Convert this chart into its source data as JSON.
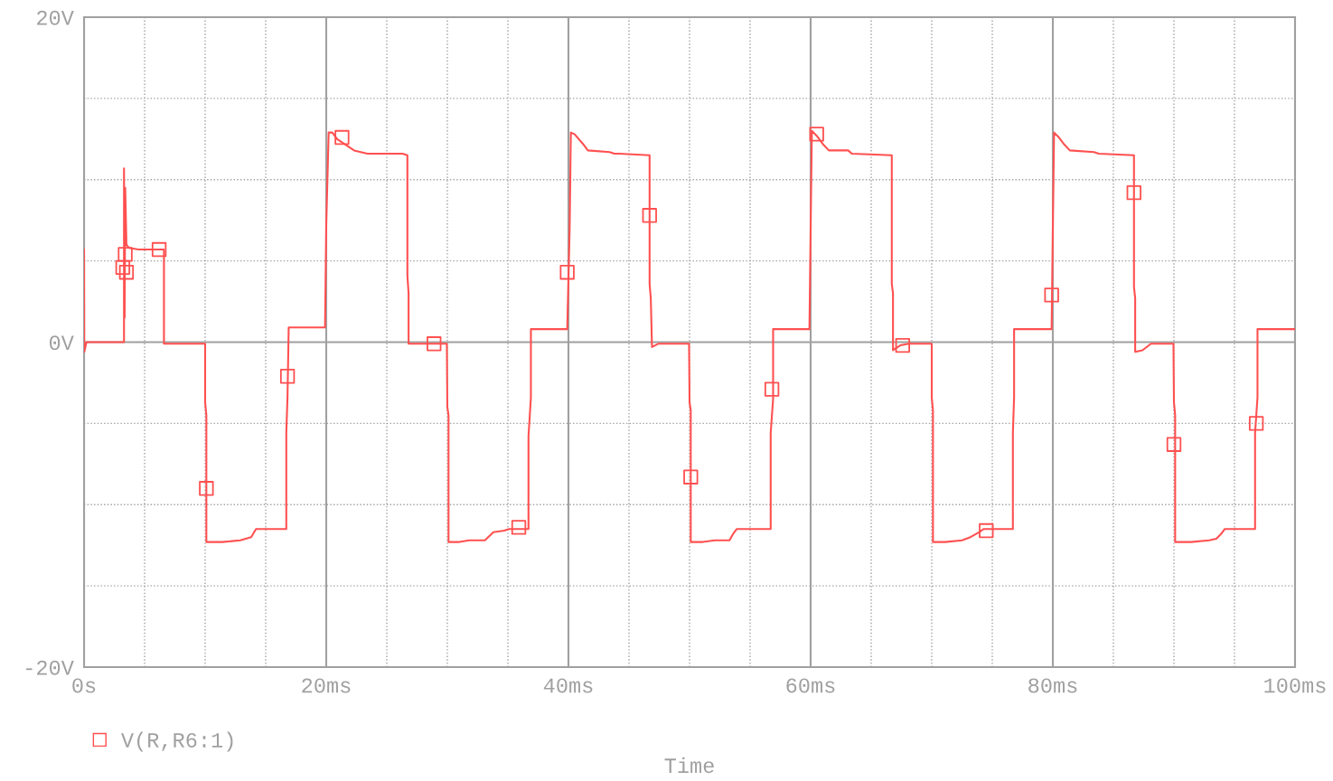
{
  "chart_data": {
    "type": "line",
    "xlabel": "Time",
    "x": [
      0,
      0.02,
      0.2,
      3.3,
      3.3,
      3.35,
      3.4,
      3.5,
      3.7,
      4.5,
      6.6,
      6.6,
      10.0,
      10.0,
      10.1,
      10.1,
      11.4,
      12.9,
      13.8,
      14.2,
      16.7,
      16.7,
      16.8,
      16.9,
      19.9,
      20.0,
      20.2,
      20.5,
      20.9,
      22.3,
      23.4,
      26.3,
      26.7,
      26.7,
      26.8,
      26.8,
      29.96,
      30.0,
      30.1,
      30.1,
      31.0,
      31.8,
      33.1,
      33.8,
      34.7,
      35.1,
      36.7,
      36.7,
      36.9,
      36.9,
      39.9,
      40.1,
      40.2,
      40.5,
      41.2,
      41.6,
      43.4,
      43.8,
      44.2,
      46.7,
      46.7,
      46.8,
      46.9,
      47.4,
      49.96,
      50.0,
      50.1,
      50.1,
      51.1,
      52.1,
      53.3,
      53.6,
      53.9,
      56.7,
      56.7,
      56.9,
      56.9,
      59.9,
      60.0,
      60.1,
      60.5,
      61.0,
      61.5,
      63.1,
      63.4,
      66.7,
      66.7,
      66.8,
      66.8,
      67.4,
      68.1,
      70.0,
      70.0,
      70.1,
      70.1,
      71.1,
      72.5,
      73.2,
      73.9,
      74.3,
      76.7,
      76.7,
      76.8,
      76.8,
      79.9,
      80.0,
      80.1,
      80.5,
      80.9,
      81.4,
      83.4,
      83.8,
      86.7,
      86.7,
      86.8,
      86.8,
      87.4,
      88.1,
      89.96,
      90.0,
      90.1,
      90.1,
      91.4,
      92.9,
      93.5,
      93.9,
      94.2,
      95.1,
      96.7,
      96.7,
      96.9,
      96.9,
      100
    ],
    "series": [
      {
        "name": "V(R,R6:1)",
        "color": "#ff5050",
        "marker": "none",
        "values": [
          5.7,
          -0.6,
          0,
          0,
          10.7,
          1.5,
          9.5,
          6.0,
          5.8,
          5.7,
          5.7,
          -0.1,
          -0.1,
          -3.7,
          -4.5,
          -12.3,
          -12.3,
          -12.2,
          -12.0,
          -11.5,
          -11.5,
          -5.6,
          -3.4,
          0.9,
          0.9,
          7.2,
          12.9,
          12.9,
          12.5,
          11.8,
          11.6,
          11.6,
          11.5,
          4.1,
          3.0,
          -0.1,
          -0.1,
          -4.0,
          -4.5,
          -12.3,
          -12.3,
          -12.2,
          -12.2,
          -11.7,
          -11.6,
          -11.5,
          -11.5,
          -5.8,
          -3.4,
          0.8,
          0.8,
          7.0,
          12.9,
          12.8,
          12.2,
          11.8,
          11.7,
          11.6,
          11.6,
          11.5,
          3.6,
          2.7,
          -0.3,
          -0.1,
          -0.1,
          -3.7,
          -4.2,
          -12.3,
          -12.3,
          -12.2,
          -12.2,
          -11.8,
          -11.5,
          -11.5,
          -5.6,
          -3.5,
          0.8,
          0.8,
          7.0,
          13.0,
          12.7,
          12.2,
          11.8,
          11.8,
          11.6,
          11.5,
          3.6,
          3.0,
          -0.5,
          -0.2,
          -0.1,
          -0.1,
          -3.4,
          -4.2,
          -12.3,
          -12.3,
          -12.2,
          -12.0,
          -11.7,
          -11.5,
          -11.5,
          -5.6,
          -3.4,
          0.8,
          0.8,
          7.0,
          12.9,
          12.6,
          12.2,
          11.8,
          11.7,
          11.6,
          11.5,
          3.4,
          2.7,
          -0.6,
          -0.5,
          -0.1,
          -0.1,
          -3.7,
          -4.5,
          -12.3,
          -12.3,
          -12.2,
          -12.1,
          -11.8,
          -11.5,
          -11.5,
          -11.5,
          -5.6,
          -3.4,
          0.8,
          0.8
        ]
      },
      {
        "type": "scatter",
        "color": "#ff5050",
        "marker": "square",
        "x": [
          3.2,
          3.5,
          3.4,
          6.2,
          10.1,
          16.8,
          21.3,
          28.9,
          35.9,
          39.9,
          46.7,
          50.1,
          56.8,
          60.5,
          67.6,
          74.5,
          79.9,
          86.7,
          90.0,
          96.8
        ],
        "values": [
          4.6,
          4.3,
          5.4,
          5.7,
          -9.0,
          -2.1,
          12.6,
          -0.1,
          -11.4,
          4.3,
          7.8,
          -8.3,
          -2.9,
          12.8,
          -0.2,
          -11.6,
          2.9,
          9.2,
          -6.3,
          -5.0
        ]
      }
    ],
    "xlim": [
      0,
      100
    ],
    "xticks": [
      {
        "value": 0,
        "label": "0s"
      },
      {
        "value": 5,
        "label": null
      },
      {
        "value": 10,
        "label": null
      },
      {
        "value": 15,
        "label": null
      },
      {
        "value": 20,
        "label": "20ms"
      },
      {
        "value": 25,
        "label": null
      },
      {
        "value": 30,
        "label": null
      },
      {
        "value": 35,
        "label": null
      },
      {
        "value": 40,
        "label": "40ms"
      },
      {
        "value": 45,
        "label": null
      },
      {
        "value": 50,
        "label": null
      },
      {
        "value": 55,
        "label": null
      },
      {
        "value": 60,
        "label": "60ms"
      },
      {
        "value": 65,
        "label": null
      },
      {
        "value": 70,
        "label": null
      },
      {
        "value": 75,
        "label": null
      },
      {
        "value": 80,
        "label": "80ms"
      },
      {
        "value": 85,
        "label": null
      },
      {
        "value": 90,
        "label": null
      },
      {
        "value": 95,
        "label": null
      },
      {
        "value": 100,
        "label": "100ms"
      }
    ],
    "ylim": [
      -20,
      20
    ],
    "yticks": [
      {
        "value": -20,
        "label": "-20V"
      },
      {
        "value": -15,
        "label": null
      },
      {
        "value": -10,
        "label": null
      },
      {
        "value": -5,
        "label": null
      },
      {
        "value": 0,
        "label": "0V"
      },
      {
        "value": 5,
        "label": null
      },
      {
        "value": 10,
        "label": null
      },
      {
        "value": 15,
        "label": null
      },
      {
        "value": 20,
        "label": "20V"
      }
    ],
    "grid": true,
    "legend": "bottom left"
  }
}
